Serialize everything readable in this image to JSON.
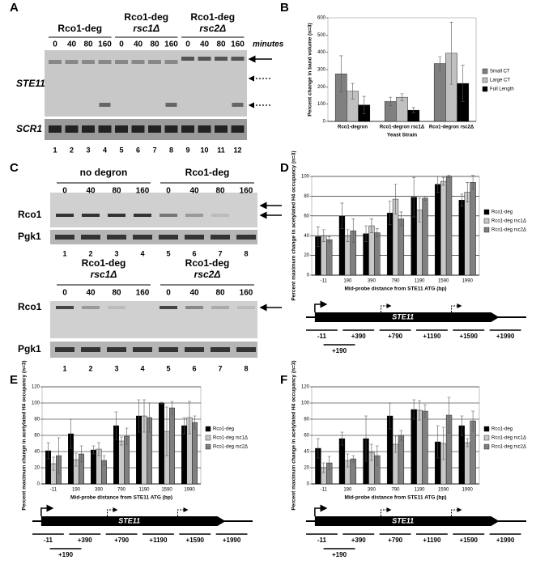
{
  "panel_letters": [
    "A",
    "B",
    "C",
    "D",
    "E",
    "F"
  ],
  "gel_A": {
    "strains": [
      [
        "Rco1-deg"
      ],
      [
        "Rco1-deg",
        "rsc1Δ"
      ],
      [
        "Rco1-deg",
        "rsc2Δ"
      ]
    ],
    "times": [
      0,
      40,
      80,
      160
    ],
    "unit": "minutes",
    "rows": [
      "STE11",
      "SCR1"
    ],
    "lanes": [
      1,
      2,
      3,
      4,
      5,
      6,
      7,
      8,
      9,
      10,
      11,
      12
    ]
  },
  "gel_C": {
    "top_strains": [
      "no degron",
      "Rco1-deg"
    ],
    "bottom_strains": [
      [
        "Rco1-deg",
        "rsc1Δ"
      ],
      [
        "Rco1-deg",
        "rsc2Δ"
      ]
    ],
    "times": [
      0,
      40,
      80,
      160
    ],
    "rows": [
      "Rco1",
      "Pgk1"
    ],
    "lanes": [
      1,
      2,
      3,
      4,
      5,
      6,
      7,
      8
    ]
  },
  "gene_map": {
    "gene": "STE11",
    "probes": [
      "-11",
      "+390",
      "+790",
      "+1190",
      "+1590",
      "+1990"
    ],
    "extra_probe": "+190"
  },
  "chart_data": [
    {
      "type": "bar",
      "y_label": "Percent change in band volume (n=3)",
      "x_label": "Yeast Strain",
      "categories": [
        "Rco1-degron",
        "Rco1-degron rsc1Δ",
        "Rco1-degron rsc2Δ"
      ],
      "series": [
        {
          "name": "Small CT",
          "color": "#808080",
          "values": [
            275,
            115,
            335
          ],
          "errors": [
            105,
            25,
            40
          ]
        },
        {
          "name": "Large CT",
          "color": "#c0c0c0",
          "values": [
            175,
            140,
            395
          ],
          "errors": [
            45,
            20,
            180
          ]
        },
        {
          "name": "Full Length",
          "color": "#000000",
          "values": [
            95,
            65,
            220
          ],
          "errors": [
            50,
            15,
            105
          ]
        }
      ],
      "ylim": [
        0,
        600
      ],
      "yticks": [
        0,
        100,
        200,
        300,
        400,
        500,
        600
      ],
      "grid": false,
      "legend": "right"
    },
    {
      "type": "bar",
      "y_label": "Percent maximum change in acetylated H4 occupancy (n=3)",
      "x_label": "Mid-probe distance from STE11 ATG (bp)",
      "categories": [
        "-11",
        "190",
        "390",
        "790",
        "1190",
        "1590",
        "1990"
      ],
      "series": [
        {
          "name": "Rco1-deg",
          "color": "#000000",
          "values": [
            39,
            60,
            42,
            63,
            79,
            92,
            76
          ],
          "errors": [
            10,
            13,
            8,
            12,
            20,
            8,
            6
          ]
        },
        {
          "name": "Rco1-deg rsc1Δ",
          "color": "#c8c8c8",
          "values": [
            40,
            40,
            50,
            77,
            66,
            95,
            84
          ],
          "errors": [
            6,
            6,
            7,
            15,
            12,
            4,
            10
          ]
        },
        {
          "name": "Rco1-deg rsc2Δ",
          "color": "#808080",
          "values": [
            36,
            45,
            43,
            57,
            78,
            100,
            94
          ],
          "errors": [
            3,
            12,
            4,
            7,
            2,
            1,
            7
          ]
        }
      ],
      "ylim": [
        0,
        100
      ],
      "yticks": [
        0,
        20,
        40,
        60,
        80,
        100
      ],
      "grid": true,
      "legend": "right"
    },
    {
      "type": "bar",
      "y_label": "Percent maximum change in acetylated H4 occupancy (n=3)",
      "x_label": "Mid-probe distance from STE11 ATG (bp)",
      "categories": [
        "-11",
        "190",
        "390",
        "790",
        "1190",
        "1590",
        "1990"
      ],
      "series": [
        {
          "name": "Rco1-deg",
          "color": "#000000",
          "values": [
            41,
            62,
            42,
            72,
            84,
            100,
            72
          ],
          "errors": [
            10,
            18,
            5,
            17,
            20,
            1,
            10
          ]
        },
        {
          "name": "Rco1-deg rsc1Δ",
          "color": "#c8c8c8",
          "values": [
            25,
            30,
            43,
            53,
            84,
            65,
            82
          ],
          "errors": [
            8,
            8,
            8,
            5,
            20,
            30,
            20
          ]
        },
        {
          "name": "Rco1-deg rsc2Δ",
          "color": "#808080",
          "values": [
            35,
            37,
            29,
            59,
            82,
            94,
            76
          ],
          "errors": [
            22,
            10,
            6,
            10,
            18,
            8,
            8
          ]
        }
      ],
      "ylim": [
        0,
        120
      ],
      "yticks": [
        0,
        20,
        40,
        60,
        80,
        100,
        120
      ],
      "grid": true,
      "legend": "right"
    },
    {
      "type": "bar",
      "y_label": "Percent maximum change in acetylated H4 occupancy (n=3)",
      "x_label": "Mid-probe distance from STE11 ATG (bp)",
      "categories": [
        "-11",
        "190",
        "390",
        "790",
        "1190",
        "1590",
        "1990"
      ],
      "series": [
        {
          "name": "Rco1-deg",
          "color": "#000000",
          "values": [
            44,
            56,
            56,
            84,
            92,
            52,
            72
          ],
          "errors": [
            12,
            8,
            28,
            16,
            12,
            20,
            12
          ]
        },
        {
          "name": "Rco1-deg rsc1Δ",
          "color": "#c8c8c8",
          "values": [
            20,
            29,
            39,
            49,
            91,
            50,
            51
          ],
          "errors": [
            6,
            8,
            10,
            10,
            12,
            20,
            5
          ]
        },
        {
          "name": "Rco1-deg rsc2Δ",
          "color": "#808080",
          "values": [
            26,
            31,
            35,
            60,
            90,
            85,
            78
          ],
          "errors": [
            8,
            4,
            12,
            6,
            8,
            22,
            12
          ]
        }
      ],
      "ylim": [
        0,
        120
      ],
      "yticks": [
        0,
        20,
        40,
        60,
        80,
        100,
        120
      ],
      "grid": true,
      "legend": "right"
    }
  ]
}
